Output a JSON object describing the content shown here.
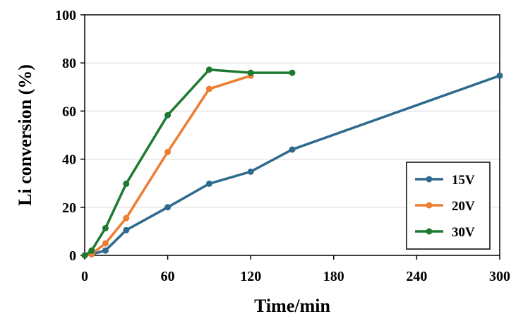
{
  "chart_data": {
    "type": "line",
    "title": "",
    "xlabel": "Time/min",
    "ylabel": "Li conversion (%)",
    "xlim": [
      0,
      300
    ],
    "ylim": [
      0,
      100
    ],
    "xticks": [
      0,
      60,
      120,
      180,
      240,
      300
    ],
    "yticks": [
      0,
      20,
      40,
      60,
      80,
      100
    ],
    "grid": "horizontal",
    "legend_position": "bottom-right",
    "series": [
      {
        "name": "15V",
        "color": "#2e6a8e",
        "x": [
          0,
          5,
          15,
          30,
          60,
          90,
          120,
          150,
          300
        ],
        "y": [
          0,
          0.5,
          2,
          10.5,
          20,
          29.8,
          34.8,
          44,
          74.7
        ]
      },
      {
        "name": "20V",
        "color": "#ed7d31",
        "x": [
          0,
          5,
          15,
          30,
          60,
          90,
          120
        ],
        "y": [
          0,
          0.5,
          5,
          15.5,
          43,
          69.2,
          74.7
        ]
      },
      {
        "name": "30V",
        "color": "#1e7a32",
        "x": [
          0,
          5,
          15,
          30,
          60,
          90,
          120,
          150
        ],
        "y": [
          0,
          2,
          11.3,
          29.8,
          58.3,
          77.2,
          75.9,
          75.9
        ]
      }
    ]
  }
}
